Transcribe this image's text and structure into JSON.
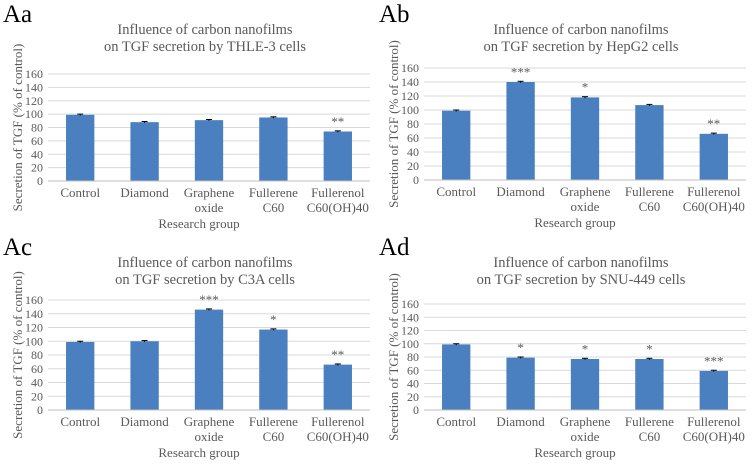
{
  "panels": [
    {
      "label": "Aa",
      "title": [
        "Influence of carbon nanofilms",
        "on TGF secretion by THLE-3 cells"
      ]
    },
    {
      "label": "Ab",
      "title": [
        "Influence of carbon nanofilms",
        "on TGF secretion by HepG2 cells"
      ]
    },
    {
      "label": "Ac",
      "title": [
        "Influence of carbon nanofilms",
        "on TGF secretion by C3A cells"
      ]
    },
    {
      "label": "Ad",
      "title": [
        "Influence of carbon nanofilms",
        "on TGF secretion by SNU-449 cells"
      ]
    }
  ],
  "colors": {
    "bar": "#4a7fc0",
    "gridline": "#d9d9d9",
    "text": "#595959"
  },
  "chart_data": [
    {
      "type": "bar",
      "title": "Influence of carbon nanofilms on TGF secretion by THLE-3 cells",
      "xlabel": "Research group",
      "ylabel": "Secretion of TGF (% of control)",
      "categories": [
        [
          "Control"
        ],
        [
          "Diamond"
        ],
        [
          "Graphene",
          "oxide"
        ],
        [
          "Fullerene",
          "C60"
        ],
        [
          "Fullerenol",
          "C60(OH)40"
        ]
      ],
      "values": [
        99,
        88,
        91,
        95,
        74
      ],
      "errors": [
        1,
        1,
        1,
        1,
        1
      ],
      "significance": [
        "",
        "",
        "",
        "",
        "**"
      ],
      "ylim": [
        0,
        160
      ],
      "yticks": [
        0,
        20,
        40,
        60,
        80,
        100,
        120,
        140,
        160
      ],
      "grid": true
    },
    {
      "type": "bar",
      "title": "Influence of carbon nanofilms on TGF secretion by HepG2 cells",
      "xlabel": "Research group",
      "ylabel": "Secretion of TGF (% of control)",
      "categories": [
        [
          "Control"
        ],
        [
          "Diamond"
        ],
        [
          "Graphene",
          "oxide"
        ],
        [
          "Fullerene",
          "C60"
        ],
        [
          "Fullerenol",
          "C60(OH)40"
        ]
      ],
      "values": [
        99,
        140,
        118,
        107,
        66
      ],
      "errors": [
        1,
        1,
        1,
        1,
        1
      ],
      "significance": [
        "",
        "***",
        "*",
        "",
        "**"
      ],
      "ylim": [
        0,
        160
      ],
      "yticks": [
        0,
        20,
        40,
        60,
        80,
        100,
        120,
        140,
        160
      ],
      "grid": true
    },
    {
      "type": "bar",
      "title": "Influence of carbon nanofilms on TGF secretion by C3A cells",
      "xlabel": "Research group",
      "ylabel": "Secretion of TGF (% of control)",
      "categories": [
        [
          "Control"
        ],
        [
          "Diamond"
        ],
        [
          "Graphene",
          "oxide"
        ],
        [
          "Fullerene",
          "C60"
        ],
        [
          "Fullerenol",
          "C60(OH)40"
        ]
      ],
      "values": [
        99,
        100,
        146,
        117,
        66
      ],
      "errors": [
        1,
        1,
        1,
        1,
        1
      ],
      "significance": [
        "",
        "",
        "***",
        "*",
        "**"
      ],
      "ylim": [
        0,
        160
      ],
      "yticks": [
        0,
        20,
        40,
        60,
        80,
        100,
        120,
        140,
        160
      ],
      "grid": true
    },
    {
      "type": "bar",
      "title": "Influence of carbon nanofilms on TGF secretion by SNU-449 cells",
      "xlabel": "Research group",
      "ylabel": "Secretion of TGF (% of control)",
      "categories": [
        [
          "Control"
        ],
        [
          "Diamond"
        ],
        [
          "Graphene",
          "oxide"
        ],
        [
          "Fullerene",
          "C60"
        ],
        [
          "Fullerenol",
          "C60(OH)40"
        ]
      ],
      "values": [
        99,
        79,
        77,
        77,
        59
      ],
      "errors": [
        1,
        1,
        1,
        1,
        1
      ],
      "significance": [
        "",
        "*",
        "*",
        "*",
        "***"
      ],
      "ylim": [
        0,
        160
      ],
      "yticks": [
        0,
        20,
        40,
        60,
        80,
        100,
        120,
        140,
        160
      ],
      "grid": true
    }
  ]
}
